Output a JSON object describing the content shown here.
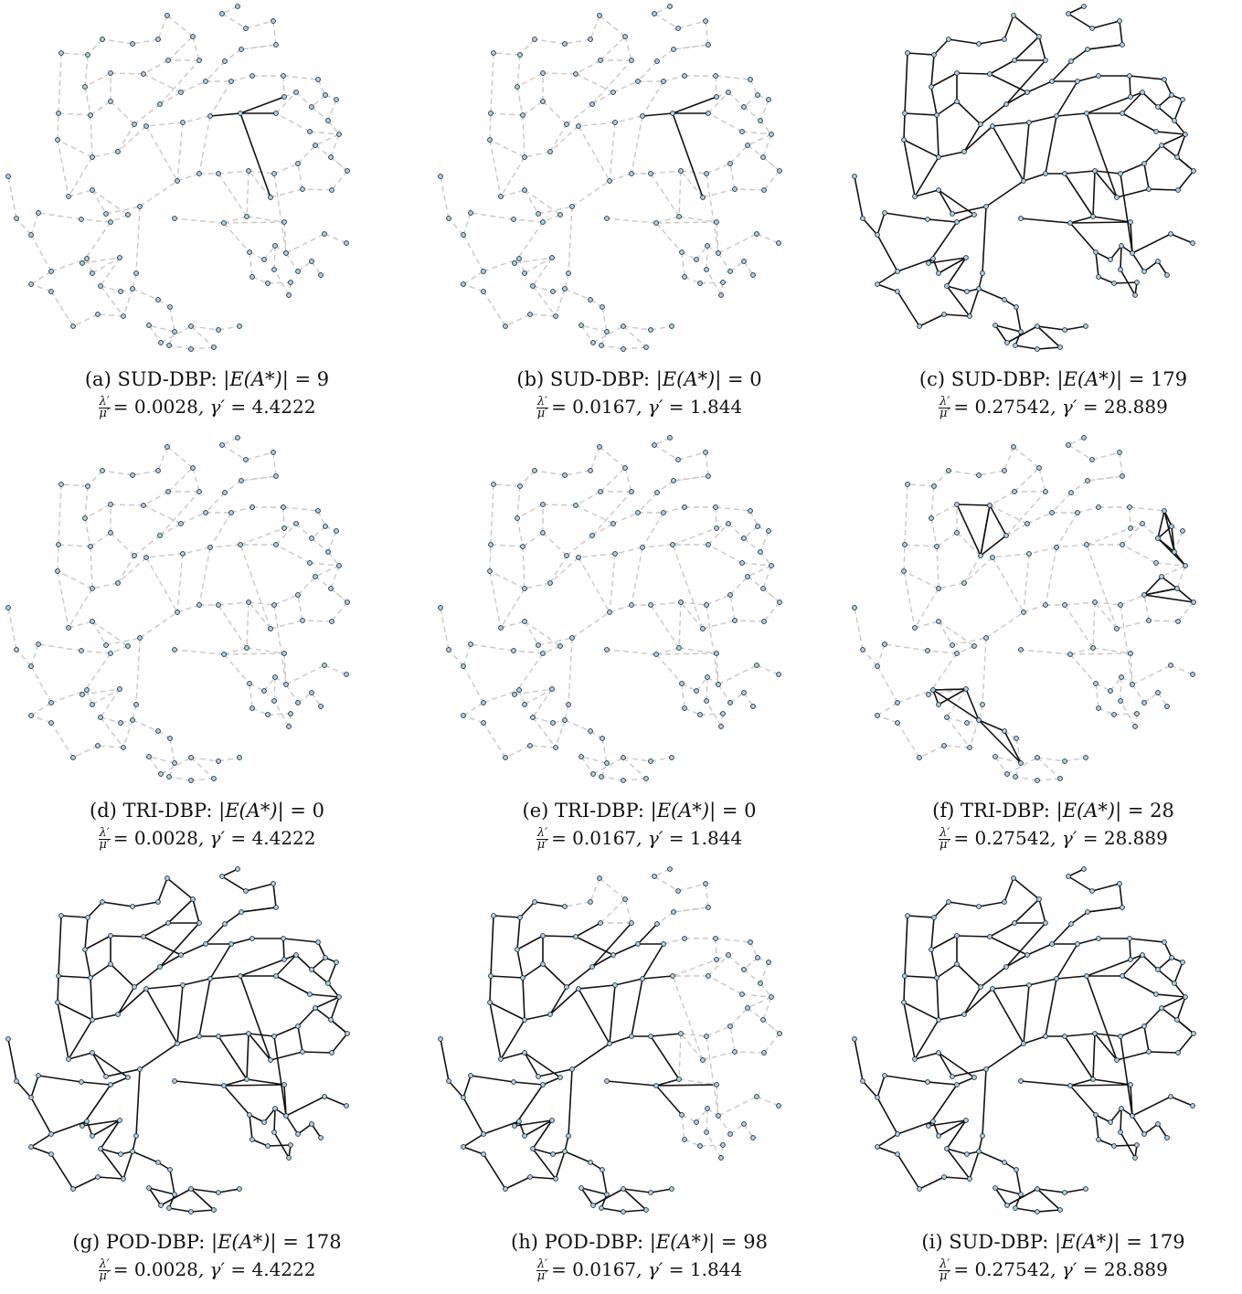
{
  "panels": [
    {
      "tag": "(a)",
      "method": "SUD-DBP:",
      "edges": "9",
      "ratio": "0.0028",
      "gamma": "4.4222",
      "mode": "hub"
    },
    {
      "tag": "(b)",
      "method": "SUD-DBP:",
      "edges": "0",
      "ratio": "0.0167",
      "gamma": "1.844",
      "mode": "hub"
    },
    {
      "tag": "(c)",
      "method": "SUD-DBP:",
      "edges": "179",
      "ratio": "0.27542",
      "gamma": "28.889",
      "mode": "all"
    },
    {
      "tag": "(d)",
      "method": "TRI-DBP:",
      "edges": "0",
      "ratio": "0.0028",
      "gamma": "4.4222",
      "mode": "none"
    },
    {
      "tag": "(e)",
      "method": "TRI-DBP:",
      "edges": "0",
      "ratio": "0.0167",
      "gamma": "1.844",
      "mode": "none"
    },
    {
      "tag": "(f)",
      "method": "TRI-DBP:",
      "edges": "28",
      "ratio": "0.27542",
      "gamma": "28.889",
      "mode": "tri"
    },
    {
      "tag": "(g)",
      "method": "POD-DBP:",
      "edges": "178",
      "ratio": "0.0028",
      "gamma": "4.4222",
      "mode": "all"
    },
    {
      "tag": "(h)",
      "method": "POD-DBP:",
      "edges": "98",
      "ratio": "0.0167",
      "gamma": "1.844",
      "mode": "partial"
    },
    {
      "tag": "(i)",
      "method": "SUD-DBP:",
      "edges": "179",
      "ratio": "0.27542",
      "gamma": "28.889",
      "mode": "all"
    }
  ],
  "caption_parts": {
    "edge_lhs": "|E(A*)| = ",
    "frac_num": "λ′",
    "frac_den": "μ′",
    "gamma_lhs": ", γ′ = "
  },
  "colors": {
    "node_fill": "#a8d4ea",
    "node_stroke": "#1a2a38",
    "active_edge": "#111111",
    "inactive_edge": "#c8c8c8"
  }
}
